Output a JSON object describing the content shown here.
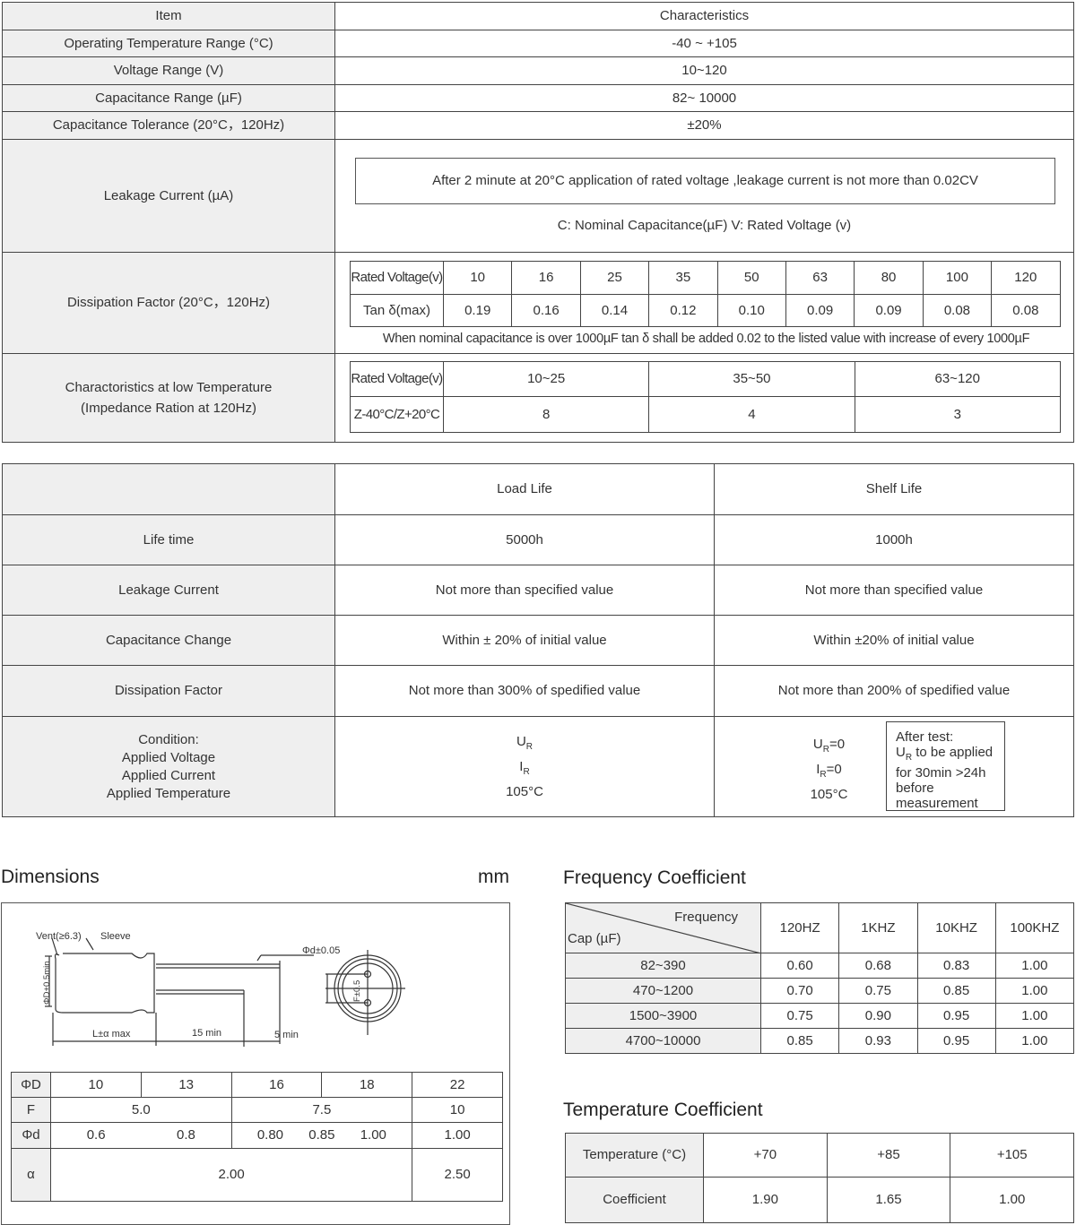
{
  "spec_table": {
    "header": {
      "item": "Item",
      "characteristics": "Characteristics"
    },
    "rows": [
      {
        "item": "Operating Temperature Range (°C)",
        "value": "-40 ~ +105"
      },
      {
        "item": "Voltage Range (V)",
        "value": "10~120"
      },
      {
        "item": "Capacitance Range (µF)",
        "value": "82~ 10000"
      },
      {
        "item": "Capacitance Tolerance (20°C，120Hz)",
        "value": "±20%"
      }
    ],
    "leakage": {
      "item": "Leakage Current (µA)",
      "statement": "After 2 minute at 20°C application of rated voltage ,leakage current is not more than 0.02CV",
      "legend": "C:  Nominal Capacitance(µF)    V:  Rated Voltage (v)"
    },
    "dissipation": {
      "item": "Dissipation Factor (20°C，120Hz)",
      "row_label_voltage": "Rated Voltage(v)",
      "row_label_tan": "Tan δ(max)",
      "voltages": [
        "10",
        "16",
        "25",
        "35",
        "50",
        "63",
        "80",
        "100",
        "120"
      ],
      "tan": [
        "0.19",
        "0.16",
        "0.14",
        "0.12",
        "0.10",
        "0.09",
        "0.09",
        "0.08",
        "0.08"
      ],
      "note": "When nominal capacitance is over 1000µF tan δ shall be added 0.02 to the listed value with increase of every 1000µF"
    },
    "low_temp": {
      "item_line1": "Charactoristics at low Temperature",
      "item_line2": "(Impedance Ration at 120Hz)",
      "row_label_voltage": "Rated Voltage(v)",
      "row_label_ratio": "Z-40°C/Z+20°C",
      "voltages": [
        "10~25",
        "35~50",
        "63~120"
      ],
      "ratios": [
        "8",
        "4",
        "3"
      ]
    }
  },
  "life_table": {
    "headers": [
      "",
      "Load Life",
      "Shelf  Life"
    ],
    "rows": [
      [
        "Life time",
        "5000h",
        "1000h"
      ],
      [
        "Leakage Current",
        "Not more than specified value",
        "Not more than specified value"
      ],
      [
        "Capacitance Change",
        "Within ± 20% of initial value",
        "Within ±20% of initial value"
      ],
      [
        "Dissipation Factor",
        "Not more than 300% of  spedified value",
        "Not more than 200% of  spedified value"
      ]
    ],
    "condition": {
      "labels": [
        "Condition:",
        "Applied Voltage",
        "Applied Current",
        "Applied Temperature"
      ],
      "load": {
        "u": "U",
        "u_sub": "R",
        "i": "I",
        "i_sub": "R",
        "temp": "105°C"
      },
      "shelf": {
        "u": "U",
        "u_sub": "R",
        "u_val": "=0",
        "i": "I",
        "i_sub": "R",
        "i_val": "=0",
        "temp": "105°C"
      },
      "after_test": {
        "line1": "After test:",
        "u": "U",
        "u_sub": "R",
        "line2": " to be applied",
        "line3": "for 30min >24h",
        "line4": "before",
        "line5": "measurement"
      }
    }
  },
  "dimensions": {
    "title": "Dimensions",
    "unit": "mm",
    "drawing_labels": {
      "vent": "Vent(≥6.3)",
      "sleeve": "Sleeve",
      "diameter": "ΦD+0.5min",
      "lead_dia": "Φd±0.05",
      "length": "L±α  max",
      "lead15": "15 min",
      "lead5": "5 min",
      "pitch": "F±0.5"
    },
    "table": {
      "row_labels": [
        "ΦD",
        "F",
        "Φd",
        "α"
      ],
      "phiD": [
        "10",
        "13",
        "16",
        "18",
        "22"
      ],
      "F": [
        "5.0",
        "7.5",
        "10"
      ],
      "phid": [
        "0.6",
        "0.8",
        "0.80",
        "0.85",
        "1.00",
        "1.00"
      ],
      "alpha": [
        "2.00",
        "2.50"
      ]
    }
  },
  "frequency_coefficient": {
    "title": "Frequency Coefficient",
    "corner_top": "Frequency",
    "corner_bottom": "Cap (µF)",
    "frequencies": [
      "120HZ",
      "1KHZ",
      "10KHZ",
      "100KHZ"
    ],
    "rows": [
      {
        "cap": "82~390",
        "values": [
          "0.60",
          "0.68",
          "0.83",
          "1.00"
        ]
      },
      {
        "cap": "470~1200",
        "values": [
          "0.70",
          "0.75",
          "0.85",
          "1.00"
        ]
      },
      {
        "cap": "1500~3900",
        "values": [
          "0.75",
          "0.90",
          "0.95",
          "1.00"
        ]
      },
      {
        "cap": "4700~10000",
        "values": [
          "0.85",
          "0.93",
          "0.95",
          "1.00"
        ]
      }
    ]
  },
  "temperature_coefficient": {
    "title": "Temperature Coefficient",
    "temp_label": "Temperature (°C)",
    "coef_label": "Coefficient",
    "temps": [
      "+70",
      "+85",
      "+105"
    ],
    "coefs": [
      "1.90",
      "1.65",
      "1.00"
    ]
  }
}
